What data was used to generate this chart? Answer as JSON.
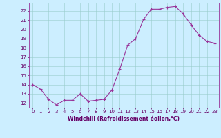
{
  "x": [
    0,
    1,
    2,
    3,
    4,
    5,
    6,
    7,
    8,
    9,
    10,
    11,
    12,
    13,
    14,
    15,
    16,
    17,
    18,
    19,
    20,
    21,
    22,
    23
  ],
  "y": [
    14.0,
    13.5,
    12.4,
    11.8,
    12.3,
    12.3,
    13.0,
    12.2,
    12.3,
    12.4,
    13.4,
    15.7,
    18.3,
    19.0,
    21.1,
    22.2,
    22.2,
    22.4,
    22.5,
    21.7,
    20.5,
    19.4,
    18.7,
    18.5
  ],
  "line_color": "#993399",
  "marker": "+",
  "marker_size": 3,
  "marker_linewidth": 0.8,
  "line_width": 0.8,
  "background_color": "#cceeff",
  "grid_color": "#99cccc",
  "spine_color": "#993399",
  "tick_color": "#660066",
  "axis_label_color": "#660066",
  "ylabel_ticks": [
    12,
    13,
    14,
    15,
    16,
    17,
    18,
    19,
    20,
    21,
    22
  ],
  "xlabel": "Windchill (Refroidissement éolien,°C)",
  "xlabel_fontsize": 5.5,
  "tick_fontsize": 5.0,
  "ylim": [
    11.5,
    22.9
  ],
  "xlim": [
    -0.5,
    23.5
  ],
  "xticks": [
    0,
    1,
    2,
    3,
    4,
    5,
    6,
    7,
    8,
    9,
    10,
    11,
    12,
    13,
    14,
    15,
    16,
    17,
    18,
    19,
    20,
    21,
    22,
    23
  ]
}
